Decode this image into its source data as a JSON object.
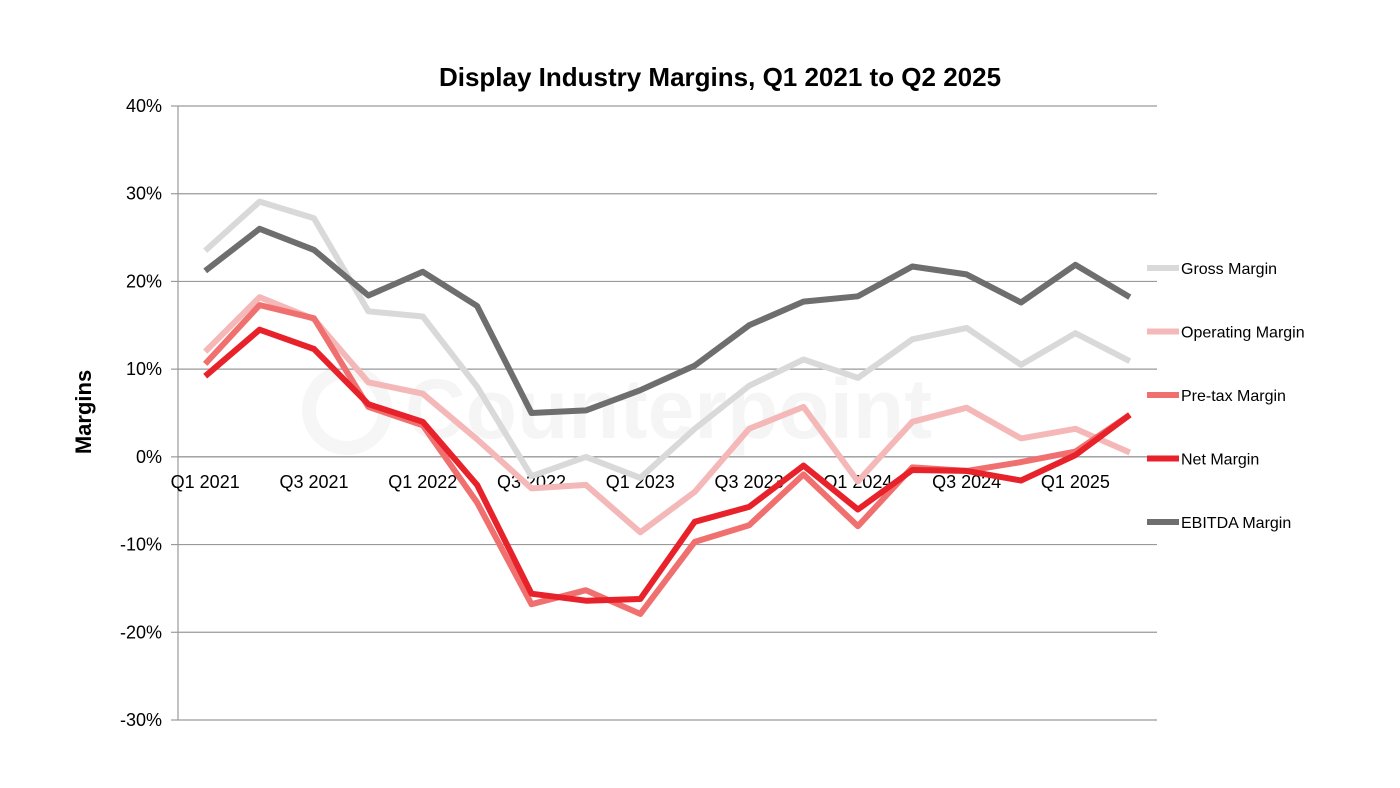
{
  "chart_data": {
    "type": "line",
    "title": "Display Industry Margins, Q1 2021 to Q2 2025",
    "ylabel": "Margins",
    "xlabel": "",
    "ylim": [
      -30,
      40
    ],
    "yticks": [
      40,
      30,
      20,
      10,
      0,
      -10,
      -20,
      -30
    ],
    "ytick_labels": [
      "40%",
      "30%",
      "20%",
      "10%",
      "0%",
      "-10%",
      "-20%",
      "-30%"
    ],
    "x": [
      "Q1 2021",
      "Q2 2021",
      "Q3 2021",
      "Q4 2021",
      "Q1 2022",
      "Q2 2022",
      "Q3 2022",
      "Q4 2022",
      "Q1 2023",
      "Q2 2023",
      "Q3 2023",
      "Q4 2023",
      "Q1 2024",
      "Q2 2024",
      "Q3 2024",
      "Q4 2024",
      "Q1 2025",
      "Q2 2025"
    ],
    "x_tick_labels": [
      {
        "index": 0,
        "label": "Q1 2021"
      },
      {
        "index": 2,
        "label": "Q3 2021"
      },
      {
        "index": 4,
        "label": "Q1 2022"
      },
      {
        "index": 6,
        "label": "Q3 2022"
      },
      {
        "index": 8,
        "label": "Q1 2023"
      },
      {
        "index": 10,
        "label": "Q3 2023"
      },
      {
        "index": 12,
        "label": "Q1 2024"
      },
      {
        "index": 14,
        "label": "Q3 2024"
      },
      {
        "index": 16,
        "label": "Q1 2025"
      }
    ],
    "grid": true,
    "legend_position": "right",
    "series": [
      {
        "name": "Gross Margin",
        "color": "#d9d9d9",
        "values": [
          23.5,
          29.1,
          27.2,
          16.6,
          16.0,
          8.0,
          -2.2,
          0.0,
          -2.4,
          3.2,
          8.1,
          11.1,
          9.0,
          13.4,
          14.7,
          10.5,
          14.1,
          10.9
        ]
      },
      {
        "name": "Operating Margin",
        "color": "#f5b8b8",
        "values": [
          12.0,
          18.2,
          15.7,
          8.5,
          7.2,
          2.0,
          -3.6,
          -3.2,
          -8.6,
          -4.0,
          3.2,
          5.7,
          -2.8,
          4.0,
          5.6,
          2.1,
          3.2,
          0.5
        ]
      },
      {
        "name": "Pre-tax Margin",
        "color": "#f07070",
        "values": [
          10.6,
          17.3,
          15.8,
          5.7,
          3.6,
          -5.2,
          -16.8,
          -15.2,
          -17.9,
          -9.7,
          -7.8,
          -2.0,
          -7.9,
          -1.2,
          -1.6,
          -0.6,
          0.6,
          4.8
        ]
      },
      {
        "name": "Net Margin",
        "color": "#e8222a",
        "values": [
          9.2,
          14.5,
          12.3,
          6.0,
          4.0,
          -3.2,
          -15.6,
          -16.4,
          -16.2,
          -7.4,
          -5.7,
          -1.0,
          -6.0,
          -1.5,
          -1.6,
          -2.7,
          0.2,
          4.8
        ]
      },
      {
        "name": "EBITDA Margin",
        "color": "#6e6e6e",
        "values": [
          21.2,
          26.0,
          23.6,
          18.4,
          21.1,
          17.2,
          5.0,
          5.3,
          7.6,
          10.4,
          15.0,
          17.7,
          18.3,
          21.7,
          20.8,
          17.6,
          21.9,
          18.2
        ]
      }
    ],
    "watermark": "Counterpoint"
  }
}
